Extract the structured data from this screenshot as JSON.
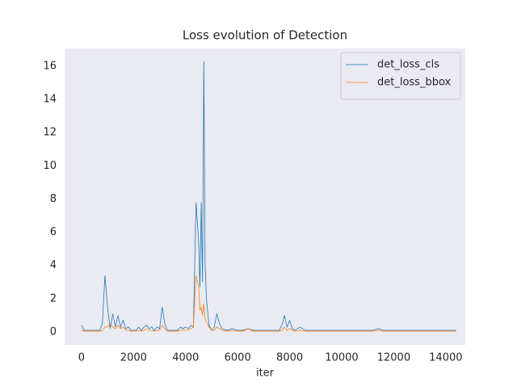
{
  "chart_data": {
    "type": "line",
    "title": "Loss evolution of Detection",
    "x_label": "iter",
    "x": [
      0,
      100,
      200,
      300,
      400,
      500,
      600,
      700,
      800,
      900,
      1000,
      1100,
      1200,
      1300,
      1400,
      1500,
      1600,
      1700,
      1800,
      1900,
      2000,
      2100,
      2200,
      2300,
      2400,
      2500,
      2600,
      2700,
      2800,
      2900,
      3000,
      3100,
      3200,
      3300,
      3400,
      3500,
      3600,
      3700,
      3800,
      3900,
      4000,
      4100,
      4200,
      4300,
      4400,
      4500,
      4550,
      4600,
      4650,
      4700,
      4750,
      4800,
      4900,
      5000,
      5100,
      5200,
      5300,
      5400,
      5600,
      5800,
      6000,
      6200,
      6400,
      6600,
      6800,
      7000,
      7200,
      7400,
      7600,
      7700,
      7800,
      7900,
      8000,
      8100,
      8200,
      8400,
      8600,
      8800,
      9200,
      9600,
      10000,
      10400,
      10800,
      11200,
      11400,
      11600,
      12000,
      12400,
      12800,
      13200,
      13600,
      14000,
      14400
    ],
    "series": [
      {
        "name": "det_loss_cls",
        "color": "#1f77b4",
        "values": [
          0.4,
          0.1,
          0.1,
          0.1,
          0.1,
          0.1,
          0.1,
          0.1,
          0.5,
          3.4,
          1.5,
          0.2,
          1.1,
          0.3,
          1.0,
          0.3,
          0.7,
          0.2,
          0.3,
          0.1,
          0.1,
          0.1,
          0.3,
          0.1,
          0.3,
          0.4,
          0.2,
          0.3,
          0.1,
          0.3,
          0.2,
          1.5,
          0.5,
          0.1,
          0.1,
          0.1,
          0.1,
          0.1,
          0.3,
          0.2,
          0.3,
          0.2,
          0.4,
          0.3,
          7.8,
          5.5,
          2.7,
          7.8,
          3.0,
          16.3,
          4.0,
          2.0,
          0.4,
          0.1,
          0.3,
          1.1,
          0.5,
          0.2,
          0.1,
          0.2,
          0.1,
          0.1,
          0.2,
          0.1,
          0.1,
          0.1,
          0.1,
          0.1,
          0.1,
          0.4,
          1.0,
          0.3,
          0.7,
          0.2,
          0.1,
          0.3,
          0.1,
          0.1,
          0.1,
          0.1,
          0.1,
          0.1,
          0.1,
          0.1,
          0.2,
          0.1,
          0.1,
          0.1,
          0.1,
          0.1,
          0.1,
          0.1,
          0.1
        ]
      },
      {
        "name": "det_loss_bbox",
        "color": "#ff7f0e",
        "values": [
          0.1,
          0.05,
          0.05,
          0.05,
          0.05,
          0.05,
          0.05,
          0.05,
          0.1,
          0.3,
          0.3,
          0.5,
          0.3,
          0.2,
          0.4,
          0.2,
          0.3,
          0.1,
          0.1,
          0.05,
          0.05,
          0.05,
          0.1,
          0.05,
          0.1,
          0.2,
          0.1,
          0.1,
          0.05,
          0.1,
          0.1,
          0.4,
          0.2,
          0.05,
          0.05,
          0.05,
          0.05,
          0.05,
          0.1,
          0.1,
          0.1,
          0.1,
          0.2,
          0.3,
          3.4,
          2.8,
          1.3,
          1.5,
          1.0,
          1.7,
          0.8,
          0.6,
          0.3,
          0.1,
          0.1,
          0.3,
          0.2,
          0.1,
          0.05,
          0.1,
          0.05,
          0.05,
          0.2,
          0.05,
          0.05,
          0.05,
          0.05,
          0.05,
          0.05,
          0.1,
          0.3,
          0.1,
          0.2,
          0.1,
          0.05,
          0.1,
          0.05,
          0.05,
          0.05,
          0.05,
          0.05,
          0.05,
          0.05,
          0.05,
          0.1,
          0.05,
          0.05,
          0.05,
          0.05,
          0.05,
          0.05,
          0.05,
          0.05
        ]
      }
    ],
    "xlim": [
      -650,
      14750
    ],
    "ylim": [
      -0.78,
      17.07
    ],
    "xticks": [
      0,
      2000,
      4000,
      6000,
      8000,
      10000,
      12000,
      14000
    ],
    "yticks": [
      0,
      2,
      4,
      6,
      8,
      10,
      12,
      14,
      16
    ],
    "grid": false,
    "legend": "upper right"
  }
}
